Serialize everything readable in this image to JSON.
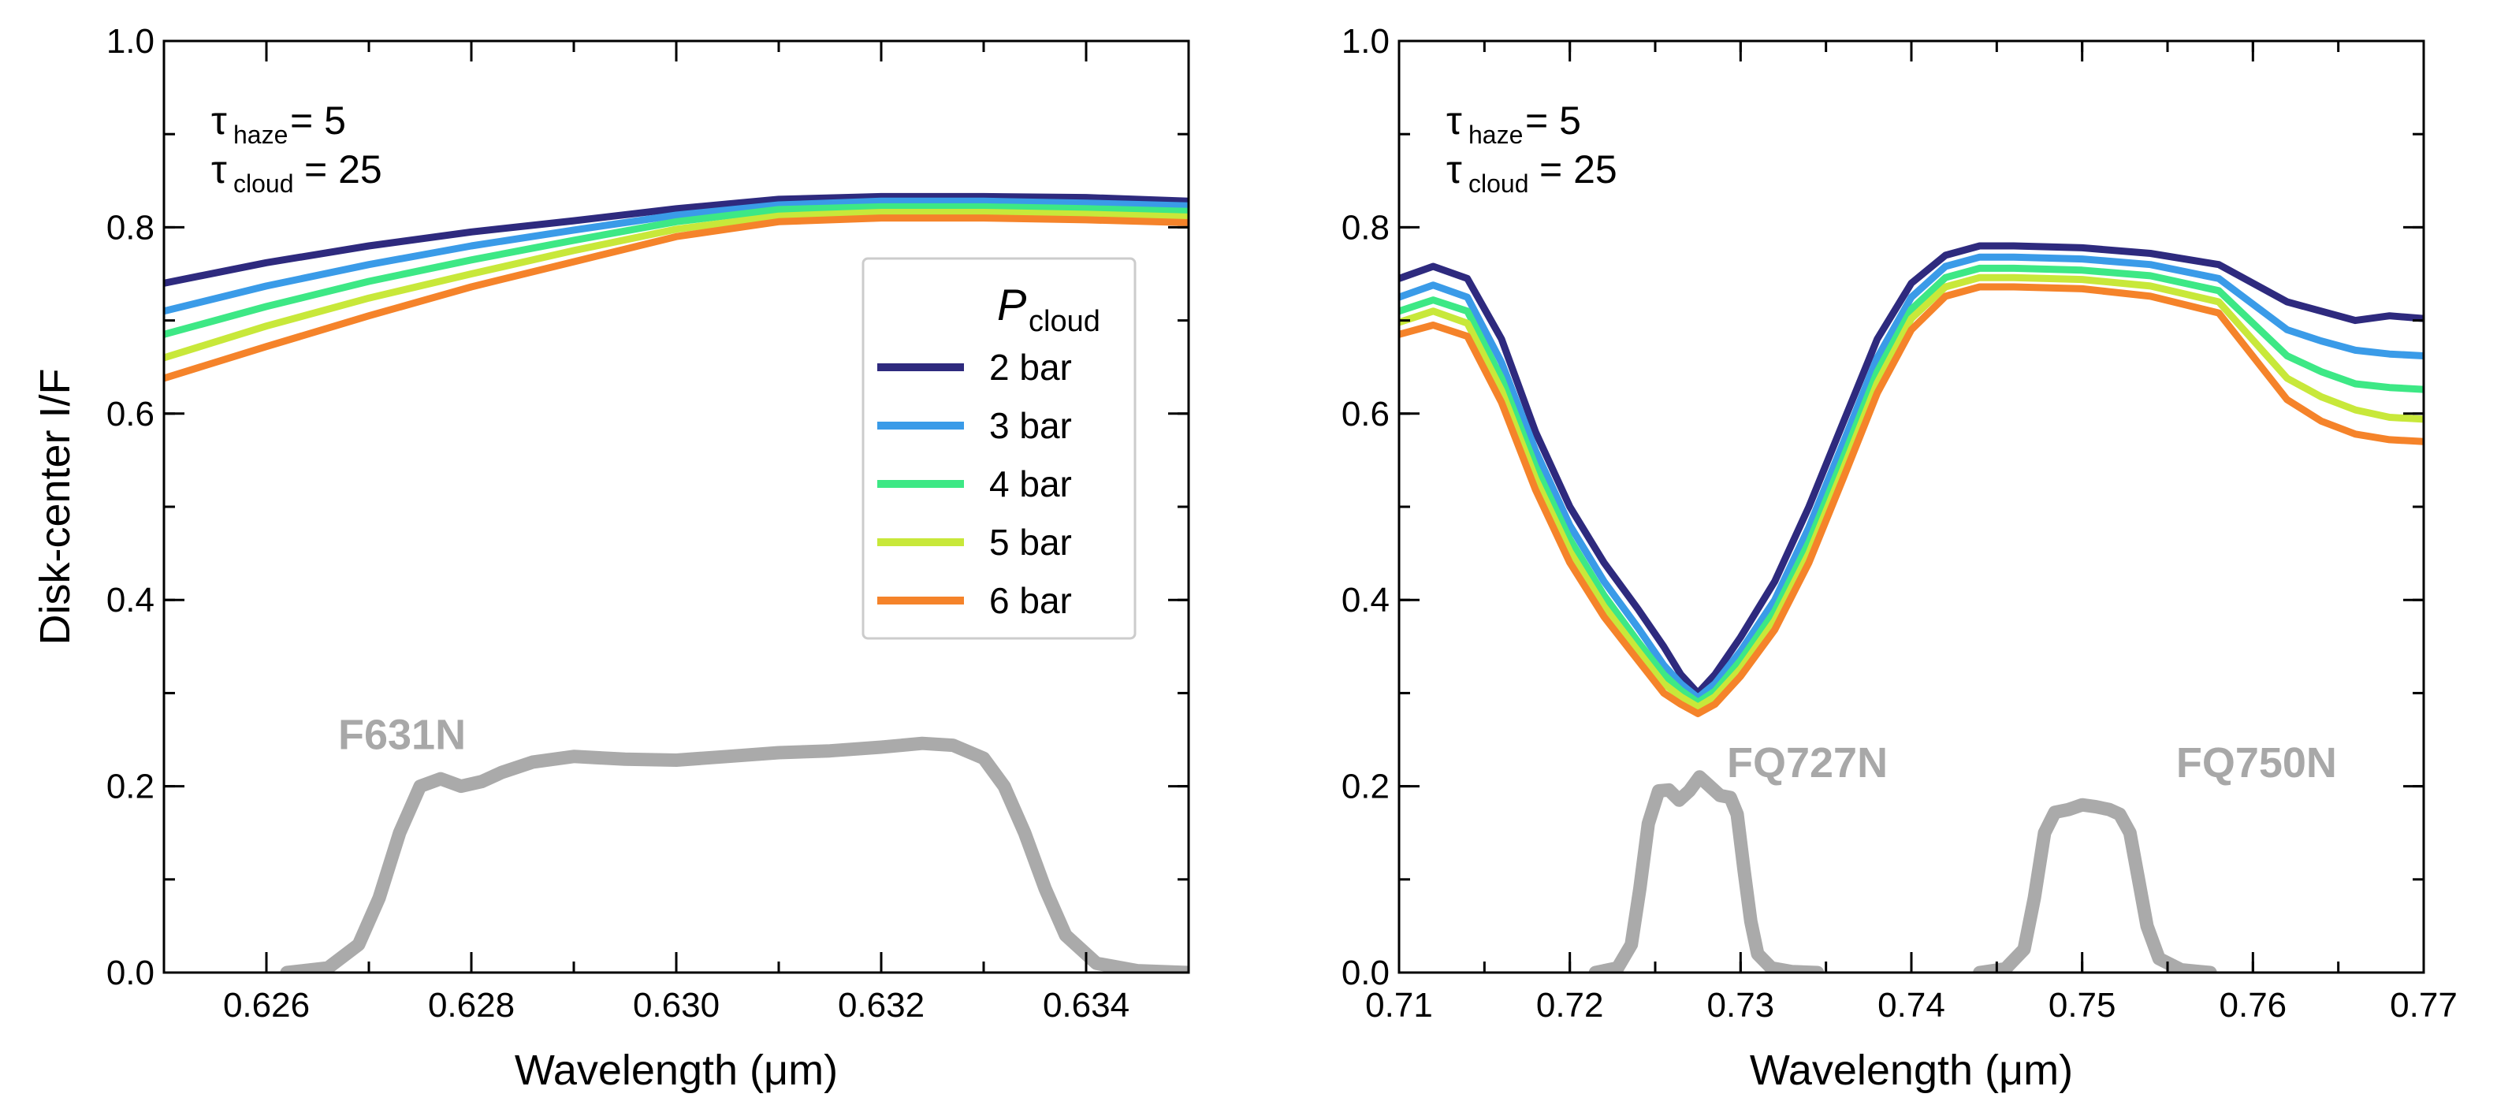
{
  "chart_data": [
    {
      "type": "line",
      "panel": "left",
      "annotation": {
        "tau_haze": "5",
        "tau_cloud": "25",
        "haze_sub": "haze",
        "cloud_sub": "cloud",
        "tau": "τ",
        "eq": " = "
      },
      "xlabel": "Wavelength (μm)",
      "ylabel": "Disk-center I/F",
      "xlim": [
        0.625,
        0.635
      ],
      "ylim": [
        0.0,
        1.0
      ],
      "xticks": [
        0.626,
        0.628,
        0.63,
        0.632,
        0.634
      ],
      "xtick_labels": [
        "0.626",
        "0.628",
        "0.630",
        "0.632",
        "0.634"
      ],
      "yticks": [
        0.0,
        0.2,
        0.4,
        0.6,
        0.8,
        1.0
      ],
      "ytick_labels": [
        "0.0",
        "0.2",
        "0.4",
        "0.6",
        "0.8",
        "1.0"
      ],
      "legend": {
        "title": "P",
        "title_sub": "cloud",
        "placement": "center-right",
        "entries": [
          "2 bar",
          "3 bar",
          "4 bar",
          "5 bar",
          "6 bar"
        ]
      },
      "x": [
        0.625,
        0.626,
        0.627,
        0.628,
        0.629,
        0.63,
        0.631,
        0.632,
        0.633,
        0.634,
        0.635
      ],
      "series": [
        {
          "name": "2 bar",
          "color": "#2e2a7e",
          "values": [
            0.74,
            0.762,
            0.78,
            0.795,
            0.807,
            0.82,
            0.83,
            0.833,
            0.833,
            0.832,
            0.828
          ]
        },
        {
          "name": "3 bar",
          "color": "#3a9be8",
          "values": [
            0.71,
            0.737,
            0.76,
            0.78,
            0.797,
            0.813,
            0.824,
            0.828,
            0.828,
            0.826,
            0.823
          ]
        },
        {
          "name": "4 bar",
          "color": "#3de885",
          "values": [
            0.685,
            0.715,
            0.742,
            0.765,
            0.786,
            0.806,
            0.819,
            0.822,
            0.822,
            0.82,
            0.817
          ]
        },
        {
          "name": "5 bar",
          "color": "#c8e83a",
          "values": [
            0.66,
            0.694,
            0.724,
            0.75,
            0.775,
            0.798,
            0.812,
            0.816,
            0.816,
            0.814,
            0.811
          ]
        },
        {
          "name": "6 bar",
          "color": "#f5832a",
          "values": [
            0.638,
            0.672,
            0.705,
            0.736,
            0.763,
            0.79,
            0.806,
            0.81,
            0.81,
            0.808,
            0.805
          ]
        }
      ],
      "filters": [
        {
          "name": "F631N",
          "label_x": 0.6267,
          "label_y": 0.255,
          "x": [
            0.6262,
            0.6266,
            0.6269,
            0.6271,
            0.6273,
            0.6275,
            0.6277,
            0.6279,
            0.6281,
            0.6283,
            0.6286,
            0.629,
            0.6295,
            0.63,
            0.6305,
            0.631,
            0.6315,
            0.632,
            0.6324,
            0.6327,
            0.633,
            0.6332,
            0.6334,
            0.6336,
            0.6338,
            0.6341,
            0.6345,
            0.635
          ],
          "y": [
            0.0,
            0.005,
            0.03,
            0.08,
            0.15,
            0.2,
            0.208,
            0.2,
            0.205,
            0.215,
            0.226,
            0.232,
            0.229,
            0.228,
            0.232,
            0.236,
            0.238,
            0.242,
            0.246,
            0.244,
            0.23,
            0.2,
            0.15,
            0.09,
            0.04,
            0.01,
            0.002,
            0.0
          ]
        }
      ]
    },
    {
      "type": "line",
      "panel": "right",
      "annotation": {
        "tau_haze": "5",
        "tau_cloud": "25",
        "haze_sub": "haze",
        "cloud_sub": "cloud",
        "tau": "τ",
        "eq": " = "
      },
      "xlabel": "Wavelength (μm)",
      "xlim": [
        0.71,
        0.77
      ],
      "ylim": [
        0.0,
        1.0
      ],
      "xticks": [
        0.71,
        0.72,
        0.73,
        0.74,
        0.75,
        0.76,
        0.77
      ],
      "xtick_labels": [
        "0.71",
        "0.72",
        "0.73",
        "0.74",
        "0.75",
        "0.76",
        "0.77"
      ],
      "yticks": [
        0.0,
        0.2,
        0.4,
        0.6,
        0.8,
        1.0
      ],
      "ytick_labels": [
        "0.0",
        "0.2",
        "0.4",
        "0.6",
        "0.8",
        "1.0"
      ],
      "x": [
        0.71,
        0.712,
        0.714,
        0.716,
        0.718,
        0.72,
        0.722,
        0.724,
        0.7255,
        0.7265,
        0.7275,
        0.7285,
        0.73,
        0.732,
        0.734,
        0.736,
        0.738,
        0.74,
        0.742,
        0.744,
        0.746,
        0.75,
        0.754,
        0.758,
        0.762,
        0.764,
        0.766,
        0.768,
        0.77
      ],
      "series": [
        {
          "name": "2 bar",
          "color": "#2e2a7e",
          "values": [
            0.745,
            0.758,
            0.745,
            0.68,
            0.58,
            0.5,
            0.44,
            0.39,
            0.35,
            0.32,
            0.3,
            0.32,
            0.36,
            0.42,
            0.5,
            0.59,
            0.68,
            0.74,
            0.77,
            0.78,
            0.78,
            0.778,
            0.772,
            0.76,
            0.72,
            0.71,
            0.7,
            0.705,
            0.702
          ]
        },
        {
          "name": "3 bar",
          "color": "#3a9be8",
          "values": [
            0.725,
            0.738,
            0.725,
            0.655,
            0.56,
            0.48,
            0.42,
            0.37,
            0.33,
            0.31,
            0.295,
            0.31,
            0.345,
            0.4,
            0.478,
            0.568,
            0.66,
            0.725,
            0.758,
            0.768,
            0.768,
            0.766,
            0.76,
            0.745,
            0.69,
            0.678,
            0.668,
            0.664,
            0.662
          ]
        },
        {
          "name": "4 bar",
          "color": "#3de885",
          "values": [
            0.71,
            0.722,
            0.71,
            0.638,
            0.543,
            0.465,
            0.405,
            0.355,
            0.32,
            0.303,
            0.29,
            0.302,
            0.335,
            0.388,
            0.462,
            0.552,
            0.645,
            0.712,
            0.746,
            0.756,
            0.756,
            0.754,
            0.748,
            0.732,
            0.662,
            0.645,
            0.632,
            0.628,
            0.626
          ]
        },
        {
          "name": "5 bar",
          "color": "#c8e83a",
          "values": [
            0.698,
            0.71,
            0.697,
            0.625,
            0.53,
            0.452,
            0.393,
            0.345,
            0.31,
            0.296,
            0.285,
            0.296,
            0.326,
            0.378,
            0.45,
            0.54,
            0.633,
            0.702,
            0.736,
            0.746,
            0.746,
            0.744,
            0.737,
            0.72,
            0.638,
            0.618,
            0.604,
            0.596,
            0.594
          ]
        },
        {
          "name": "6 bar",
          "color": "#f5832a",
          "values": [
            0.685,
            0.695,
            0.683,
            0.612,
            0.518,
            0.44,
            0.382,
            0.335,
            0.3,
            0.288,
            0.278,
            0.288,
            0.318,
            0.368,
            0.44,
            0.53,
            0.622,
            0.69,
            0.726,
            0.736,
            0.736,
            0.734,
            0.726,
            0.708,
            0.615,
            0.592,
            0.578,
            0.572,
            0.57
          ]
        }
      ],
      "filters": [
        {
          "name": "FQ727N",
          "label_x": 0.7292,
          "label_y": 0.225,
          "x": [
            0.7215,
            0.7228,
            0.7236,
            0.7241,
            0.7246,
            0.7252,
            0.7258,
            0.7264,
            0.727,
            0.7276,
            0.7282,
            0.7288,
            0.7294,
            0.7298,
            0.7302,
            0.7306,
            0.731,
            0.7318,
            0.733,
            0.7345
          ],
          "y": [
            0.0,
            0.005,
            0.03,
            0.09,
            0.16,
            0.195,
            0.196,
            0.185,
            0.195,
            0.21,
            0.2,
            0.19,
            0.188,
            0.17,
            0.11,
            0.055,
            0.02,
            0.005,
            0.001,
            0.0
          ]
        },
        {
          "name": "FQ750N",
          "label_x": 0.7555,
          "label_y": 0.225,
          "x": [
            0.744,
            0.7455,
            0.7466,
            0.7472,
            0.7478,
            0.7484,
            0.7492,
            0.75,
            0.7508,
            0.7516,
            0.7522,
            0.7528,
            0.7533,
            0.7538,
            0.7545,
            0.7558,
            0.7575
          ],
          "y": [
            0.0,
            0.004,
            0.025,
            0.08,
            0.15,
            0.172,
            0.175,
            0.18,
            0.178,
            0.175,
            0.17,
            0.15,
            0.1,
            0.05,
            0.015,
            0.003,
            0.0
          ]
        }
      ]
    }
  ]
}
